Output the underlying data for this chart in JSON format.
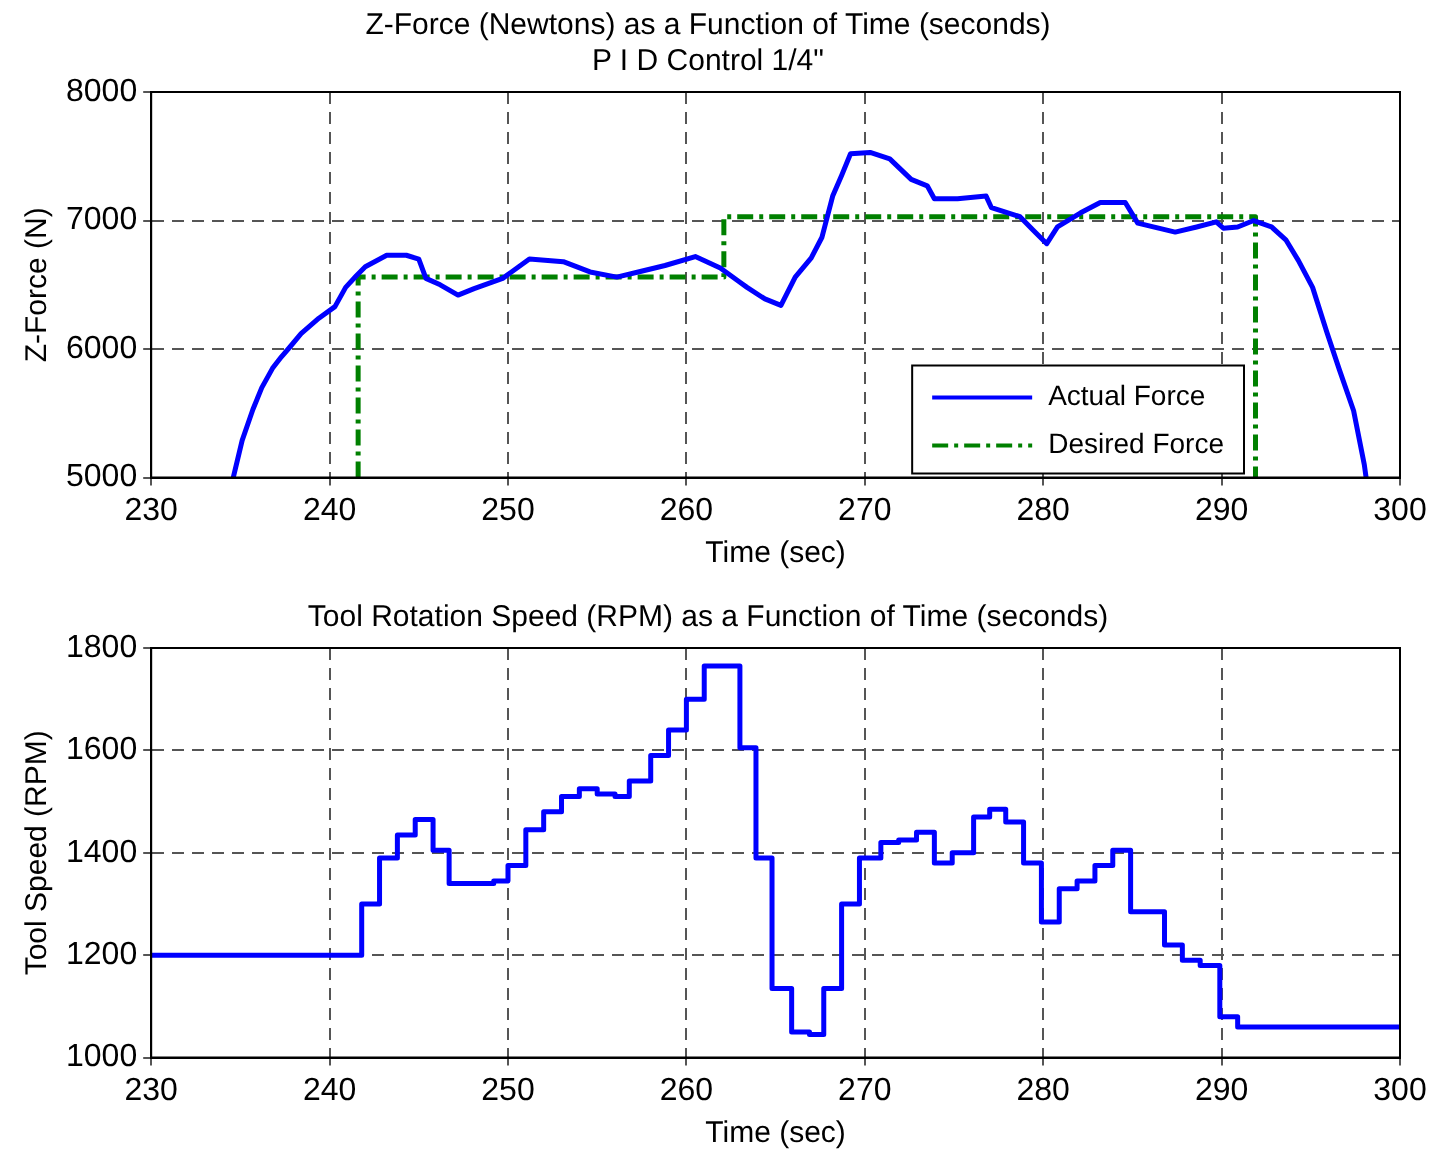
{
  "chart_data": [
    {
      "type": "line",
      "title": "Z-Force (Newtons) as a Function of Time (seconds)",
      "subtitle": "P I D Control 1/4\"",
      "xlabel": "Time (sec)",
      "ylabel": "Z-Force (N)",
      "xlim": [
        230,
        300
      ],
      "xticks": [
        230,
        240,
        250,
        260,
        270,
        280,
        290,
        300
      ],
      "ylim": [
        5000,
        8000
      ],
      "yticks": [
        5000,
        6000,
        7000,
        8000
      ],
      "grid": true,
      "legend": "bottom right",
      "series": [
        {
          "name": "Actual Force",
          "color": "#0000ff",
          "line_style": "solid",
          "x": [
            234.6,
            235.1,
            235.7,
            236.2,
            236.8,
            237.3,
            237.8,
            238.4,
            239.4,
            240.3,
            240.9,
            241.5,
            242,
            243.2,
            244.3,
            245,
            245.4,
            246.2,
            247.2,
            248.1,
            249.7,
            251.2,
            253.1,
            254.6,
            256.1,
            257.3,
            258.8,
            260.5,
            261.9,
            263,
            263.4,
            264.4,
            265.3,
            266.1,
            267,
            267.6,
            268.2,
            268.7,
            269.2,
            270.3,
            271.4,
            272.6,
            273.5,
            273.9,
            275.2,
            276.8,
            277.1,
            278.7,
            279.4,
            280.2,
            280.8,
            282.1,
            283.2,
            284.6,
            285.3,
            287.4,
            288.6,
            289.7,
            290.1,
            290.9,
            291.8,
            292.8,
            293.6,
            294.3,
            295.1,
            295.9,
            296.6,
            297.4,
            298,
            298.1
          ],
          "values": [
            5000,
            5290,
            5530,
            5700,
            5850,
            5940,
            6020,
            6120,
            6240,
            6330,
            6480,
            6570,
            6640,
            6730,
            6730,
            6700,
            6550,
            6500,
            6420,
            6470,
            6550,
            6700,
            6680,
            6600,
            6560,
            6600,
            6650,
            6720,
            6630,
            6520,
            6480,
            6390,
            6340,
            6560,
            6710,
            6870,
            7190,
            7350,
            7520,
            7530,
            7480,
            7320,
            7270,
            7170,
            7170,
            7190,
            7100,
            7030,
            6930,
            6820,
            6950,
            7060,
            7140,
            7140,
            6980,
            6910,
            6950,
            6990,
            6940,
            6950,
            7000,
            6950,
            6850,
            6690,
            6480,
            6130,
            5840,
            5520,
            5100,
            5000
          ]
        },
        {
          "name": "Desired Force",
          "color": "#008000",
          "line_style": "dashdot",
          "x": [
            241.6,
            241.6,
            262.1,
            262.1,
            291.9,
            291.9
          ],
          "values": [
            5000,
            6560,
            6560,
            7030,
            7030,
            5000
          ]
        }
      ]
    },
    {
      "type": "step",
      "title": "Tool Rotation Speed (RPM) as a Function of Time (seconds)",
      "xlabel": "Time (sec)",
      "ylabel": "Tool Speed (RPM)",
      "xlim": [
        230,
        300
      ],
      "xticks": [
        230,
        240,
        250,
        260,
        270,
        280,
        290,
        300
      ],
      "ylim": [
        1000,
        1800
      ],
      "yticks": [
        1000,
        1200,
        1400,
        1600,
        1800
      ],
      "grid": true,
      "series": [
        {
          "color": "#0000ff",
          "line_style": "solid",
          "x": [
            230,
            241.8,
            242.8,
            243.8,
            244.8,
            245.8,
            246.7,
            248.4,
            249.2,
            250,
            251,
            252,
            253,
            254,
            255,
            256,
            256.8,
            258,
            259,
            260,
            261,
            263,
            263.9,
            264.8,
            265.9,
            266.9,
            267.7,
            268.7,
            269.7,
            270.9,
            271.9,
            272.9,
            273.9,
            274.9,
            276.1,
            277,
            277.9,
            278.9,
            279.9,
            280.9,
            281.9,
            282.9,
            283.9,
            284.9,
            286.8,
            287.8,
            288.8,
            289.9,
            290.9,
            300
          ],
          "values": [
            1200,
            1300,
            1390,
            1435,
            1465,
            1405,
            1340,
            1340,
            1345,
            1375,
            1445,
            1480,
            1510,
            1525,
            1515,
            1510,
            1540,
            1590,
            1640,
            1700,
            1765,
            1605,
            1390,
            1135,
            1050,
            1045,
            1135,
            1300,
            1390,
            1420,
            1425,
            1440,
            1380,
            1400,
            1470,
            1485,
            1460,
            1380,
            1265,
            1330,
            1345,
            1375,
            1405,
            1285,
            1220,
            1190,
            1180,
            1080,
            1060,
            1060
          ]
        }
      ]
    }
  ]
}
